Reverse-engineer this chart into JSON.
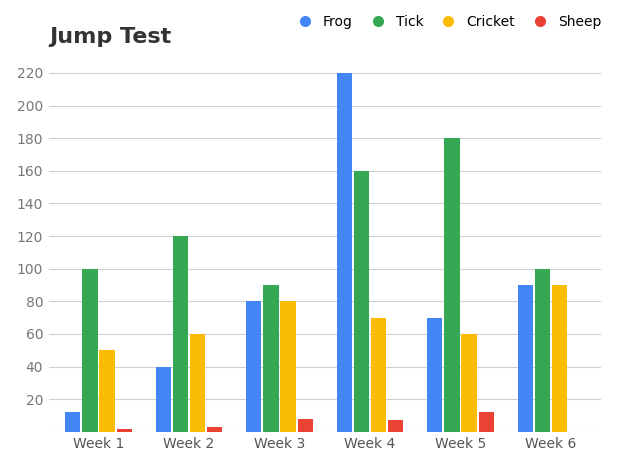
{
  "title": "Jump Test",
  "categories": [
    "Week 1",
    "Week 2",
    "Week 3",
    "Week 4",
    "Week 5",
    "Week 6"
  ],
  "series": [
    {
      "label": "Frog",
      "color": "#4285F4",
      "values": [
        12,
        40,
        80,
        220,
        70,
        90
      ]
    },
    {
      "label": "Tick",
      "color": "#34A853",
      "values": [
        100,
        120,
        90,
        160,
        180,
        100
      ]
    },
    {
      "label": "Cricket",
      "color": "#FBBC05",
      "values": [
        50,
        60,
        80,
        70,
        60,
        90
      ]
    },
    {
      "label": "Sheep",
      "color": "#EA4335",
      "values": [
        2,
        3,
        8,
        7,
        12,
        0
      ]
    }
  ],
  "ylim": [
    0,
    230
  ],
  "yticks": [
    0,
    20,
    40,
    60,
    80,
    100,
    120,
    140,
    160,
    180,
    200,
    220
  ],
  "title_fontsize": 16,
  "legend_fontsize": 10,
  "tick_fontsize": 10,
  "background_color": "#ffffff",
  "grid_color": "#d0d0d0",
  "bar_width": 0.17,
  "bar_gap": 0.02
}
